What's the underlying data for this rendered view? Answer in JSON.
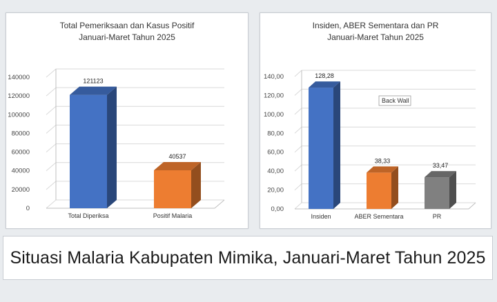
{
  "caption": "Situasi Malaria Kabupaten Mimika, Januari-Maret Tahun 2025",
  "chart_data": [
    {
      "type": "bar",
      "title": "Total Pemeriksaan dan Kasus Positif",
      "subtitle": "Januari-Maret Tahun 2025",
      "categories": [
        "Total Diperiksa",
        "Positif Malaria"
      ],
      "values": [
        121123,
        40537
      ],
      "value_labels": [
        "121123",
        "40537"
      ],
      "yticks": [
        "0",
        "20000",
        "40000",
        "60000",
        "80000",
        "100000",
        "120000",
        "140000"
      ],
      "ylim": [
        0,
        140000
      ],
      "colors": [
        "#4472C4",
        "#ED7D31"
      ],
      "grid": true,
      "three_d": true
    },
    {
      "type": "bar",
      "title": "Insiden, ABER Sementara dan PR",
      "subtitle": "Januari-Maret Tahun 2025",
      "categories": [
        "Insiden",
        "ABER Sementara",
        "PR"
      ],
      "values": [
        128.28,
        38.33,
        33.47
      ],
      "value_labels": [
        "128,28",
        "38,33",
        "33,47"
      ],
      "yticks": [
        "0,00",
        "20,00",
        "40,00",
        "60,00",
        "80,00",
        "100,00",
        "120,00",
        "140,00"
      ],
      "ylim": [
        0,
        140
      ],
      "colors": [
        "#4472C4",
        "#ED7D31",
        "#808080"
      ],
      "annotation": "Back Wall",
      "grid": true,
      "three_d": true
    }
  ]
}
